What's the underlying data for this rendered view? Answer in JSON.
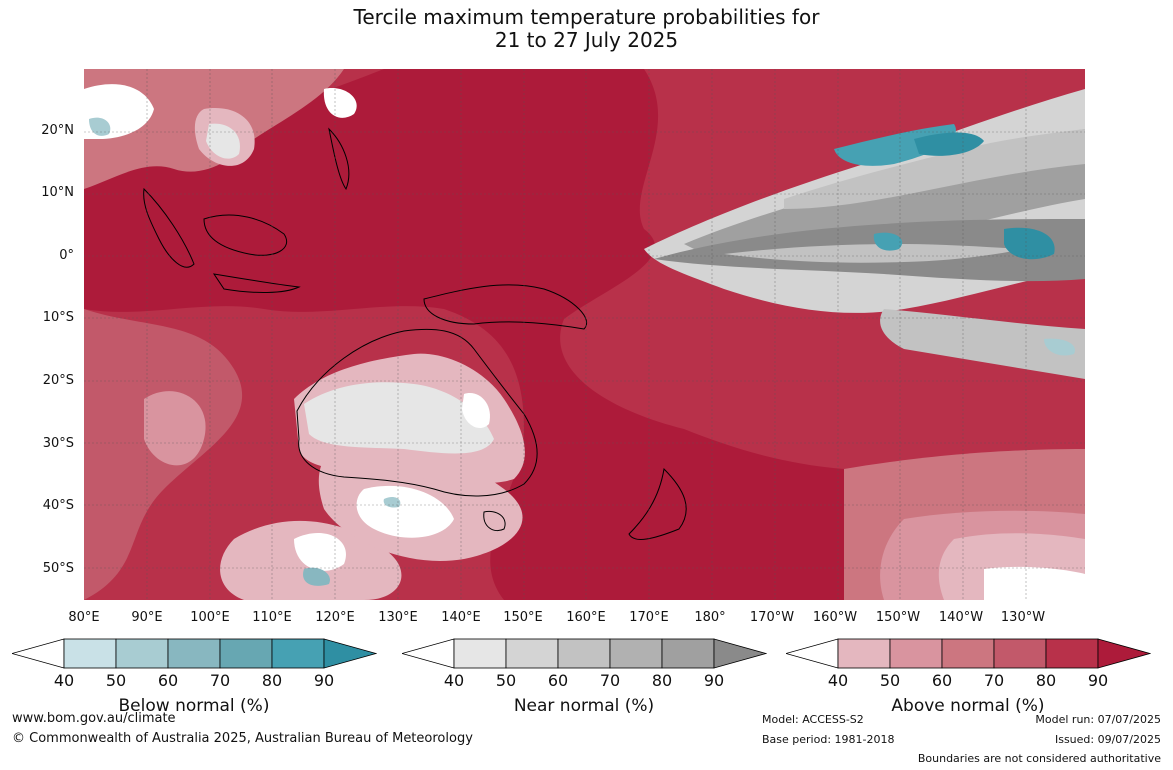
{
  "title": {
    "line1": "Tercile maximum temperature probabilities for",
    "line2": "21 to 27 July 2025"
  },
  "map": {
    "region": "Maritime Continent, Australia and south-west Pacific",
    "dominant_category": "above-normal",
    "lat_labels": [
      "20°N",
      "10°N",
      "0°",
      "10°S",
      "20°S",
      "30°S",
      "40°S",
      "50°S"
    ],
    "lon_labels": [
      "80°E",
      "90°E",
      "100°E",
      "110°E",
      "120°E",
      "130°E",
      "140°E",
      "150°E",
      "160°E",
      "170°E",
      "180°",
      "170°W",
      "160°W",
      "150°W",
      "140°W",
      "130°W"
    ]
  },
  "colorbars": {
    "below": {
      "label": "Below normal (%)",
      "ticks": [
        "40",
        "50",
        "60",
        "70",
        "80",
        "90"
      ],
      "colors": [
        "#ffffff",
        "#c9e1e7",
        "#a8ccd2",
        "#88b7c0",
        "#67a7b2",
        "#46a1b3",
        "#2f8fa3"
      ]
    },
    "near": {
      "label": "Near normal (%)",
      "ticks": [
        "40",
        "50",
        "60",
        "70",
        "80",
        "90"
      ],
      "colors": [
        "#ffffff",
        "#e6e6e6",
        "#d4d4d4",
        "#c2c2c2",
        "#b1b1b1",
        "#a0a0a0",
        "#8a8a8a"
      ]
    },
    "above": {
      "label": "Above normal (%)",
      "ticks": [
        "40",
        "50",
        "60",
        "70",
        "80",
        "90"
      ],
      "colors": [
        "#ffffff",
        "#e4b7bf",
        "#d9949f",
        "#cc7680",
        "#c2596a",
        "#b8314a",
        "#ad1b3a"
      ]
    }
  },
  "footer": {
    "website": "www.bom.gov.au/climate",
    "copyright": "© Commonwealth of Australia 2025, Australian Bureau of Meteorology",
    "model": "Model: ACCESS-S2",
    "base_period": "Base period: 1981-2018",
    "model_run": "Model run: 07/07/2025",
    "issued": "Issued: 09/07/2025",
    "disclaimer": "Boundaries are not considered authoritative"
  }
}
